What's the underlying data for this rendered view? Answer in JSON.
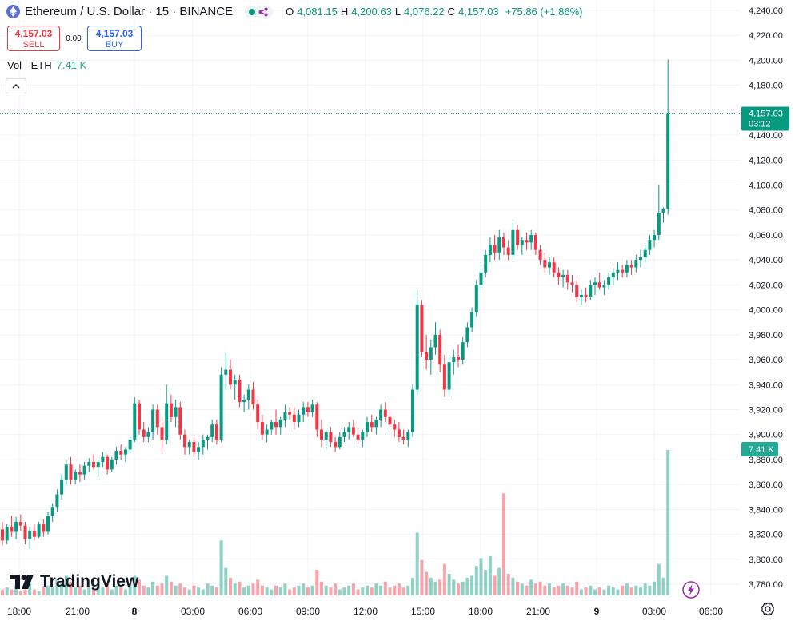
{
  "header": {
    "symbol_title": "Ethereum / U.S. Dollar · 15 · BINANCE",
    "ohlc": {
      "o_label": "O",
      "o_value": "4,081.15",
      "h_label": "H",
      "h_value": "4,200.63",
      "l_label": "L",
      "l_value": "4,076.22",
      "c_label": "C",
      "c_value": "4,157.03",
      "change": "+75.86 (+1.86%)"
    }
  },
  "trade": {
    "sell_price": "4,157.03",
    "sell_label": "SELL",
    "spread": "0.00",
    "buy_price": "4,157.03",
    "buy_label": "BUY"
  },
  "volume_legend": {
    "label": "Vol · ETH",
    "value": "7.41 K"
  },
  "branding": "TradingView",
  "colors": {
    "up": "#089981",
    "down": "#f23645",
    "accent": "#2962ff"
  },
  "icons": [
    "ethereum-icon",
    "market-open-dot",
    "replay-icon",
    "chevron-up-icon",
    "tradingview-logo",
    "gear-icon",
    "lightning-icon"
  ],
  "chart_data": {
    "type": "candlestick",
    "price_axis": {
      "ticks": [
        "4,240.00",
        "4,220.00",
        "4,200.00",
        "4,180.00",
        "4,160.00",
        "4,140.00",
        "4,120.00",
        "4,100.00",
        "4,080.00",
        "4,060.00",
        "4,040.00",
        "4,020.00",
        "4,000.00",
        "3,980.00",
        "3,960.00",
        "3,940.00",
        "3,920.00",
        "3,900.00",
        "3,880.00",
        "3,860.00",
        "3,840.00",
        "3,820.00",
        "3,800.00",
        "3,780.00"
      ],
      "ylim": [
        3770,
        4248
      ]
    },
    "time_axis": {
      "ticks": [
        "18:00",
        "21:00",
        "8",
        "03:00",
        "06:00",
        "09:00",
        "12:00",
        "15:00",
        "18:00",
        "21:00",
        "9",
        "03:00",
        "06:00"
      ],
      "bold": [
        "8",
        "9"
      ]
    },
    "last_price": {
      "value": 4157.03,
      "label": "4,157.03",
      "countdown": "03:12"
    },
    "volume_label": "7.41 K",
    "volume_max_k": 7.41,
    "candles": [
      [
        3824,
        3830,
        3811,
        3815
      ],
      [
        3815,
        3828,
        3812,
        3826
      ],
      [
        3826,
        3835,
        3818,
        3822
      ],
      [
        3822,
        3834,
        3816,
        3830
      ],
      [
        3830,
        3836,
        3823,
        3827
      ],
      [
        3827,
        3830,
        3812,
        3816
      ],
      [
        3816,
        3826,
        3808,
        3823
      ],
      [
        3823,
        3828,
        3815,
        3818
      ],
      [
        3818,
        3830,
        3817,
        3828
      ],
      [
        3828,
        3832,
        3818,
        3822
      ],
      [
        3822,
        3838,
        3820,
        3835
      ],
      [
        3835,
        3845,
        3830,
        3842
      ],
      [
        3842,
        3856,
        3838,
        3852
      ],
      [
        3852,
        3868,
        3848,
        3864
      ],
      [
        3864,
        3880,
        3860,
        3876
      ],
      [
        3876,
        3882,
        3860,
        3864
      ],
      [
        3864,
        3872,
        3860,
        3870
      ],
      [
        3870,
        3876,
        3862,
        3868
      ],
      [
        3868,
        3878,
        3864,
        3875
      ],
      [
        3875,
        3881,
        3870,
        3878
      ],
      [
        3878,
        3884,
        3872,
        3874
      ],
      [
        3874,
        3880,
        3866,
        3878
      ],
      [
        3878,
        3886,
        3874,
        3882
      ],
      [
        3882,
        3884,
        3868,
        3872
      ],
      [
        3872,
        3882,
        3870,
        3880
      ],
      [
        3880,
        3890,
        3876,
        3887
      ],
      [
        3887,
        3892,
        3880,
        3884
      ],
      [
        3884,
        3890,
        3878,
        3888
      ],
      [
        3888,
        3898,
        3885,
        3896
      ],
      [
        3896,
        3930,
        3894,
        3925
      ],
      [
        3925,
        3928,
        3900,
        3904
      ],
      [
        3904,
        3910,
        3894,
        3898
      ],
      [
        3898,
        3906,
        3894,
        3902
      ],
      [
        3902,
        3924,
        3896,
        3920
      ],
      [
        3920,
        3924,
        3900,
        3906
      ],
      [
        3906,
        3912,
        3886,
        3896
      ],
      [
        3896,
        3940,
        3892,
        3925
      ],
      [
        3925,
        3932,
        3910,
        3914
      ],
      [
        3914,
        3928,
        3906,
        3922
      ],
      [
        3922,
        3926,
        3896,
        3900
      ],
      [
        3900,
        3904,
        3884,
        3890
      ],
      [
        3890,
        3896,
        3884,
        3894
      ],
      [
        3894,
        3898,
        3882,
        3886
      ],
      [
        3886,
        3894,
        3880,
        3890
      ],
      [
        3890,
        3900,
        3884,
        3896
      ],
      [
        3896,
        3900,
        3888,
        3898
      ],
      [
        3898,
        3912,
        3894,
        3908
      ],
      [
        3908,
        3912,
        3892,
        3896
      ],
      [
        3896,
        3954,
        3894,
        3948
      ],
      [
        3948,
        3966,
        3936,
        3952
      ],
      [
        3952,
        3960,
        3936,
        3940
      ],
      [
        3940,
        3948,
        3928,
        3944
      ],
      [
        3944,
        3948,
        3922,
        3926
      ],
      [
        3926,
        3932,
        3918,
        3928
      ],
      [
        3928,
        3940,
        3920,
        3936
      ],
      [
        3936,
        3942,
        3920,
        3924
      ],
      [
        3924,
        3928,
        3904,
        3910
      ],
      [
        3910,
        3916,
        3896,
        3900
      ],
      [
        3900,
        3908,
        3894,
        3904
      ],
      [
        3904,
        3912,
        3900,
        3910
      ],
      [
        3910,
        3920,
        3900,
        3906
      ],
      [
        3906,
        3914,
        3900,
        3912
      ],
      [
        3912,
        3924,
        3906,
        3918
      ],
      [
        3918,
        3922,
        3912,
        3916
      ],
      [
        3916,
        3922,
        3904,
        3910
      ],
      [
        3910,
        3920,
        3906,
        3916
      ],
      [
        3916,
        3926,
        3910,
        3922
      ],
      [
        3922,
        3926,
        3914,
        3918
      ],
      [
        3918,
        3928,
        3914,
        3924
      ],
      [
        3924,
        3926,
        3898,
        3904
      ],
      [
        3904,
        3912,
        3890,
        3896
      ],
      [
        3896,
        3904,
        3888,
        3902
      ],
      [
        3902,
        3906,
        3890,
        3894
      ],
      [
        3894,
        3898,
        3886,
        3890
      ],
      [
        3890,
        3902,
        3888,
        3898
      ],
      [
        3898,
        3906,
        3894,
        3902
      ],
      [
        3902,
        3910,
        3896,
        3906
      ],
      [
        3906,
        3912,
        3898,
        3900
      ],
      [
        3900,
        3906,
        3892,
        3896
      ],
      [
        3896,
        3904,
        3890,
        3902
      ],
      [
        3902,
        3914,
        3898,
        3910
      ],
      [
        3910,
        3916,
        3902,
        3906
      ],
      [
        3906,
        3914,
        3900,
        3912
      ],
      [
        3912,
        3924,
        3906,
        3920
      ],
      [
        3920,
        3926,
        3910,
        3914
      ],
      [
        3914,
        3920,
        3904,
        3908
      ],
      [
        3908,
        3912,
        3898,
        3904
      ],
      [
        3904,
        3910,
        3894,
        3898
      ],
      [
        3898,
        3904,
        3892,
        3896
      ],
      [
        3896,
        3904,
        3890,
        3902
      ],
      [
        3902,
        3940,
        3898,
        3936
      ],
      [
        3936,
        4016,
        3932,
        4004
      ],
      [
        4004,
        4008,
        3962,
        3966
      ],
      [
        3966,
        3980,
        3952,
        3960
      ],
      [
        3960,
        3976,
        3948,
        3970
      ],
      [
        3970,
        3990,
        3964,
        3980
      ],
      [
        3980,
        3984,
        3950,
        3956
      ],
      [
        3956,
        3964,
        3930,
        3936
      ],
      [
        3936,
        3962,
        3930,
        3958
      ],
      [
        3958,
        3968,
        3948,
        3962
      ],
      [
        3962,
        3972,
        3954,
        3960
      ],
      [
        3960,
        3978,
        3956,
        3974
      ],
      [
        3974,
        3990,
        3970,
        3986
      ],
      [
        3986,
        4002,
        3982,
        3998
      ],
      [
        3998,
        4024,
        3994,
        4020
      ],
      [
        4020,
        4036,
        4016,
        4030
      ],
      [
        4030,
        4048,
        4026,
        4044
      ],
      [
        4044,
        4058,
        4038,
        4052
      ],
      [
        4052,
        4060,
        4040,
        4046
      ],
      [
        4046,
        4064,
        4040,
        4058
      ],
      [
        4058,
        4062,
        4044,
        4050
      ],
      [
        4050,
        4056,
        4040,
        4044
      ],
      [
        4044,
        4070,
        4040,
        4064
      ],
      [
        4064,
        4068,
        4048,
        4052
      ],
      [
        4052,
        4058,
        4044,
        4056
      ],
      [
        4056,
        4062,
        4048,
        4054
      ],
      [
        4054,
        4064,
        4048,
        4060
      ],
      [
        4060,
        4062,
        4044,
        4048
      ],
      [
        4048,
        4052,
        4036,
        4040
      ],
      [
        4040,
        4046,
        4030,
        4034
      ],
      [
        4034,
        4042,
        4028,
        4038
      ],
      [
        4038,
        4042,
        4026,
        4030
      ],
      [
        4030,
        4034,
        4020,
        4026
      ],
      [
        4026,
        4032,
        4018,
        4028
      ],
      [
        4028,
        4032,
        4016,
        4022
      ],
      [
        4022,
        4028,
        4014,
        4020
      ],
      [
        4020,
        4024,
        4006,
        4010
      ],
      [
        4010,
        4016,
        4004,
        4012
      ],
      [
        4012,
        4018,
        4006,
        4010
      ],
      [
        4010,
        4024,
        4008,
        4020
      ],
      [
        4020,
        4026,
        4012,
        4022
      ],
      [
        4022,
        4030,
        4016,
        4018
      ],
      [
        4018,
        4024,
        4012,
        4020
      ],
      [
        4020,
        4030,
        4016,
        4026
      ],
      [
        4026,
        4034,
        4020,
        4030
      ],
      [
        4030,
        4038,
        4024,
        4032
      ],
      [
        4032,
        4036,
        4026,
        4030
      ],
      [
        4030,
        4040,
        4026,
        4036
      ],
      [
        4036,
        4040,
        4028,
        4034
      ],
      [
        4034,
        4044,
        4030,
        4040
      ],
      [
        4040,
        4048,
        4034,
        4042
      ],
      [
        4042,
        4052,
        4038,
        4048
      ],
      [
        4048,
        4060,
        4044,
        4056
      ],
      [
        4056,
        4064,
        4050,
        4060
      ],
      [
        4060,
        4100,
        4056,
        4078
      ],
      [
        4078,
        4082,
        4070,
        4081
      ],
      [
        4081,
        4200.63,
        4076.22,
        4157.03
      ]
    ],
    "volumes_k": [
      0.3,
      0.4,
      0.3,
      0.5,
      0.2,
      0.3,
      0.6,
      0.3,
      0.2,
      0.4,
      0.5,
      0.4,
      0.8,
      0.6,
      1.0,
      0.7,
      0.4,
      0.5,
      0.3,
      0.4,
      0.3,
      0.5,
      0.4,
      0.6,
      0.3,
      0.5,
      0.4,
      0.3,
      0.6,
      1.0,
      0.8,
      0.5,
      0.4,
      0.7,
      0.5,
      0.6,
      1.0,
      0.7,
      0.5,
      0.6,
      0.4,
      0.3,
      0.5,
      0.4,
      0.3,
      0.6,
      0.5,
      0.4,
      2.8,
      1.4,
      0.9,
      0.6,
      0.7,
      0.4,
      0.5,
      0.6,
      0.8,
      0.5,
      0.4,
      0.3,
      0.5,
      0.4,
      0.6,
      0.3,
      0.4,
      0.5,
      0.6,
      0.4,
      0.5,
      1.3,
      0.7,
      0.5,
      0.4,
      0.6,
      0.3,
      0.4,
      0.5,
      0.6,
      0.3,
      0.4,
      0.5,
      0.4,
      0.6,
      0.5,
      0.7,
      0.4,
      0.5,
      0.6,
      0.4,
      0.5,
      0.9,
      3.2,
      1.8,
      1.2,
      0.9,
      0.7,
      0.8,
      1.6,
      1.1,
      0.8,
      0.6,
      0.7,
      0.9,
      1.0,
      1.5,
      1.9,
      1.3,
      2.0,
      1.0,
      1.4,
      5.2,
      1.1,
      0.9,
      0.7,
      0.6,
      0.5,
      0.8,
      0.6,
      0.7,
      0.5,
      0.6,
      0.4,
      0.5,
      0.6,
      0.5,
      0.4,
      0.7,
      0.3,
      0.4,
      0.5,
      0.3,
      0.4,
      0.3,
      0.5,
      0.4,
      0.3,
      0.5,
      0.6,
      0.4,
      0.5,
      0.4,
      0.6,
      0.5,
      0.7,
      1.6,
      0.9,
      7.41
    ]
  }
}
